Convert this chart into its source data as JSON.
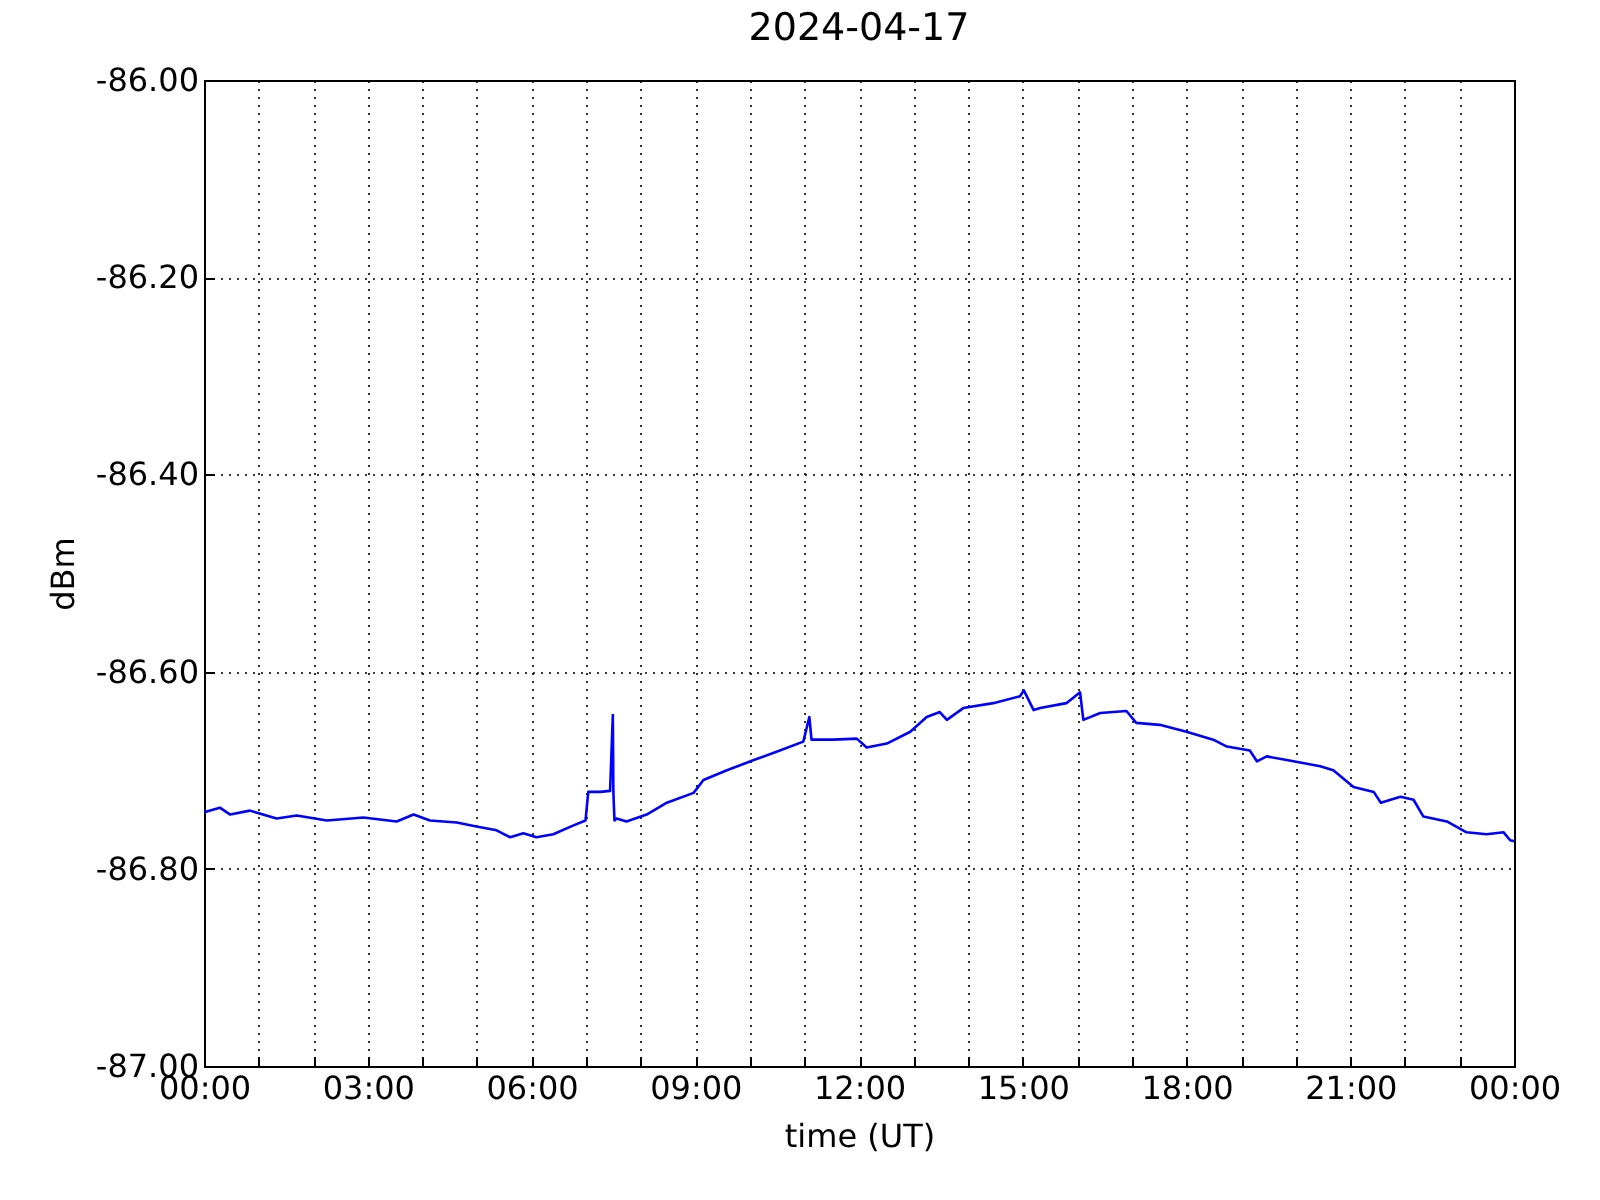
{
  "chart_data": {
    "type": "line",
    "title": "2024-04-17",
    "xlabel": "time (UT)",
    "ylabel": "dBm",
    "x": [
      0,
      0.05,
      0.29,
      0.48,
      0.84,
      1.33,
      1.7,
      2.25,
      2.92,
      3.53,
      3.84,
      4.14,
      4.63,
      4.99,
      5.36,
      5.61,
      5.85,
      6.09,
      6.4,
      6.77,
      6.99,
      7.04,
      7.26,
      7.44,
      7.49,
      7.5,
      7.52,
      7.56,
      7.74,
      8.11,
      8.48,
      8.97,
      9.15,
      9.58,
      10.06,
      10.55,
      10.98,
      11.09,
      11.13,
      11.53,
      11.96,
      12.14,
      12.51,
      12.94,
      13.24,
      13.48,
      13.61,
      13.91,
      14.46,
      14.95,
      15.02,
      15.2,
      15.32,
      15.8,
      16.05,
      16.11,
      16.42,
      16.9,
      17.08,
      17.51,
      18.0,
      18.49,
      18.74,
      19.16,
      19.29,
      19.47,
      19.96,
      20.45,
      20.69,
      21.06,
      21.43,
      21.56,
      21.92,
      22.16,
      22.34,
      22.77,
      23.13,
      23.5,
      23.81,
      23.93,
      24.0
    ],
    "values": [
      -86.742,
      -86.742,
      -86.738,
      -86.745,
      -86.741,
      -86.749,
      -86.746,
      -86.751,
      -86.748,
      -86.752,
      -86.745,
      -86.751,
      -86.753,
      -86.757,
      -86.761,
      -86.768,
      -86.764,
      -86.768,
      -86.765,
      -86.756,
      -86.751,
      -86.722,
      -86.722,
      -86.721,
      -86.644,
      -86.722,
      -86.751,
      -86.749,
      -86.752,
      -86.745,
      -86.733,
      -86.723,
      -86.71,
      -86.7,
      -86.69,
      -86.68,
      -86.671,
      -86.646,
      -86.669,
      -86.669,
      -86.668,
      -86.677,
      -86.673,
      -86.661,
      -86.646,
      -86.641,
      -86.649,
      -86.637,
      -86.632,
      -86.625,
      -86.619,
      -86.639,
      -86.637,
      -86.632,
      -86.621,
      -86.649,
      -86.642,
      -86.64,
      -86.652,
      -86.654,
      -86.661,
      -86.669,
      -86.676,
      -86.68,
      -86.691,
      -86.686,
      -86.691,
      -86.696,
      -86.7,
      -86.717,
      -86.722,
      -86.733,
      -86.727,
      -86.73,
      -86.747,
      -86.752,
      -86.763,
      -86.765,
      -86.763,
      -86.771,
      -86.772
    ],
    "color": "#0000ff",
    "xlim": [
      0,
      24
    ],
    "xticks": [
      {
        "value": 0,
        "label": "00:00"
      },
      {
        "value": 1,
        "label": null
      },
      {
        "value": 2,
        "label": null
      },
      {
        "value": 3,
        "label": "03:00"
      },
      {
        "value": 4,
        "label": null
      },
      {
        "value": 5,
        "label": null
      },
      {
        "value": 6,
        "label": "06:00"
      },
      {
        "value": 7,
        "label": null
      },
      {
        "value": 8,
        "label": null
      },
      {
        "value": 9,
        "label": "09:00"
      },
      {
        "value": 10,
        "label": null
      },
      {
        "value": 11,
        "label": null
      },
      {
        "value": 12,
        "label": "12:00"
      },
      {
        "value": 13,
        "label": null
      },
      {
        "value": 14,
        "label": null
      },
      {
        "value": 15,
        "label": "15:00"
      },
      {
        "value": 16,
        "label": null
      },
      {
        "value": 17,
        "label": null
      },
      {
        "value": 18,
        "label": "18:00"
      },
      {
        "value": 19,
        "label": null
      },
      {
        "value": 20,
        "label": null
      },
      {
        "value": 21,
        "label": "21:00"
      },
      {
        "value": 22,
        "label": null
      },
      {
        "value": 23,
        "label": null
      },
      {
        "value": 24,
        "label": "00:00"
      }
    ],
    "ylim": [
      -87,
      -86
    ],
    "yticks": [
      {
        "value": -87,
        "label": "-87.00"
      },
      {
        "value": -86.8,
        "label": "-86.80"
      },
      {
        "value": -86.6,
        "label": "-86.60"
      },
      {
        "value": -86.4,
        "label": "-86.40"
      },
      {
        "value": -86.2,
        "label": "-86.20"
      },
      {
        "value": -86,
        "label": "-86.00"
      }
    ],
    "grid": true
  }
}
